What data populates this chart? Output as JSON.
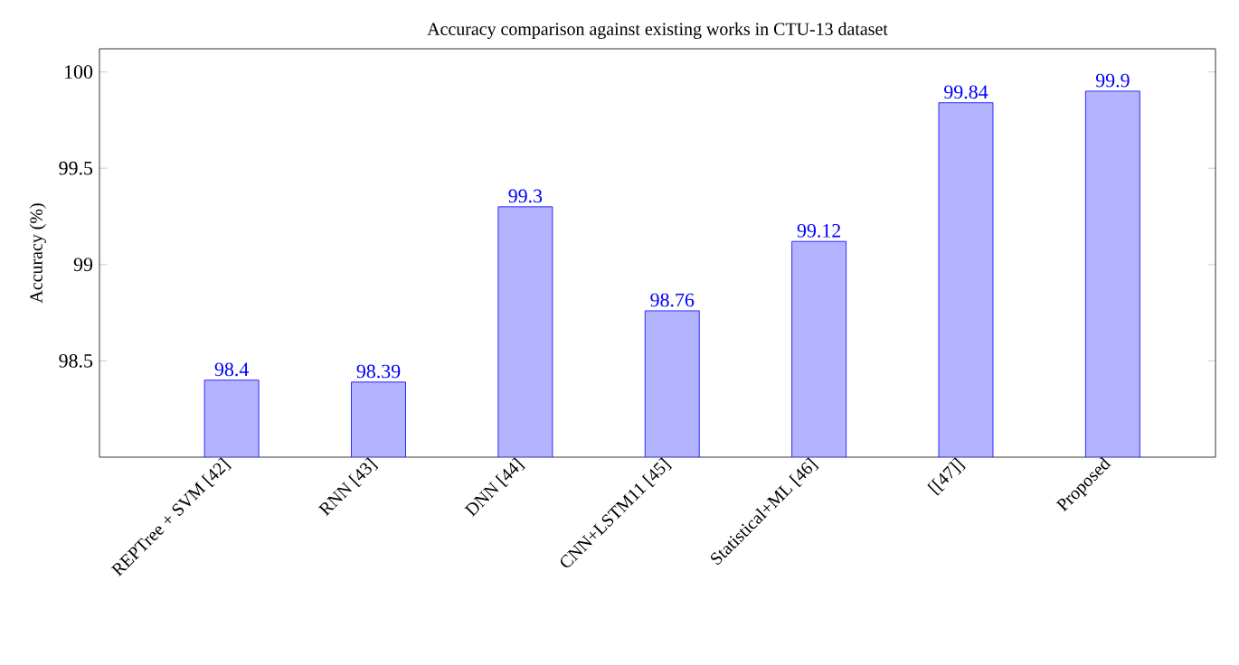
{
  "chart_data": {
    "type": "bar",
    "title": "Accuracy comparison against existing works in CTU-13 dataset",
    "ylabel": "Accuracy (%)",
    "categories": [
      "REPTree + SVM [42]",
      "RNN [43]",
      "DNN [44]",
      "CNN+LSTM11 [45]",
      "Statistical+ML [46]",
      "[[47]]",
      "Proposed"
    ],
    "series": [
      {
        "color": "#b3b3ff",
        "values": [
          98.4,
          98.39,
          99.3,
          98.76,
          99.12,
          99.84,
          99.9
        ]
      }
    ],
    "ylim": [
      98.0,
      100.12
    ],
    "yticks": [
      98.5,
      99,
      99.5,
      100
    ],
    "data_labels": true
  }
}
